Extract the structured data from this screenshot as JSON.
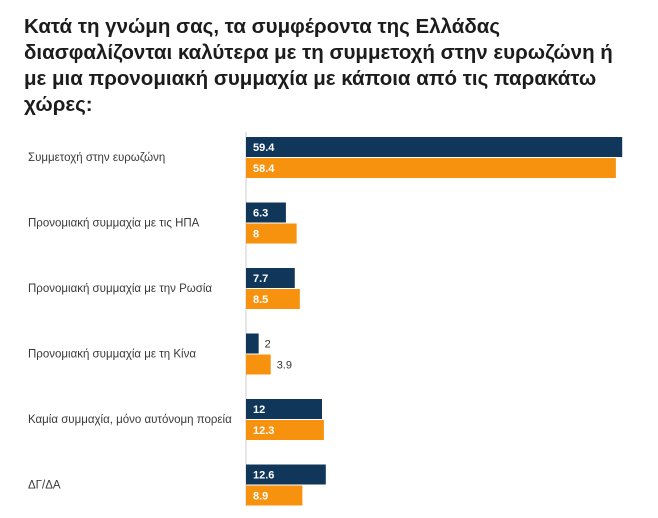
{
  "chart_data": {
    "type": "bar",
    "orientation": "horizontal",
    "title": "Κατά τη γνώμη σας, τα συμφέροντα της Ελλάδας διασφαλίζονται καλύτερα με τη συμμετοχή στην ευρωζώνη ή με μια προνομιακή συμμαχία με κάποια από τις παρακάτω χώρες:",
    "categories": [
      "Συμμετοχή στην ευρωζώνη",
      "Προνομιακή συμμαχία με τις ΗΠΑ",
      "Προνομιακή συμμαχία με την Ρωσία",
      "Προνομιακή συμμαχία με τη Κίνα",
      "Καμία συμμαχία, μόνο αυτόνομη πορεία",
      "ΔΓ/ΔΑ"
    ],
    "series": [
      {
        "values": [
          59.4,
          6.3,
          7.7,
          2,
          12,
          12.6
        ],
        "color": "#10365a"
      },
      {
        "values": [
          58.4,
          8,
          8.5,
          3.9,
          12.3,
          8.9
        ],
        "color": "#f7920f"
      }
    ],
    "xlim": [
      0,
      60
    ],
    "grid": false,
    "legend": "none"
  }
}
